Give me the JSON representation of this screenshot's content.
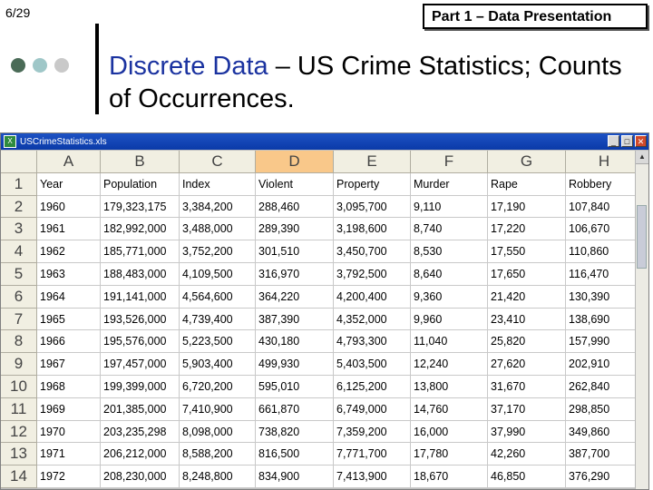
{
  "slide": {
    "number": "6/29",
    "section": "Part 1 – Data Presentation"
  },
  "title": {
    "highlight": "Discrete Data",
    "rest": " – US Crime Statistics; Counts of Occurrences."
  },
  "colors": {
    "dot1": "#4a6b57",
    "dot2": "#9fc7c8",
    "dot3": "#c9c9c9",
    "title_accent": "#1b33a0",
    "selected_header": "#f9c88a"
  },
  "window": {
    "title": "USCrimeStatistics.xls"
  },
  "sheet": {
    "columns": [
      "A",
      "B",
      "C",
      "D",
      "E",
      "F",
      "G",
      "H"
    ],
    "selected_column": "D",
    "rows": [
      {
        "n": "1",
        "cells": [
          "Year",
          "Population",
          "Index",
          "Violent",
          "Property",
          "Murder",
          "Rape",
          "Robbery"
        ]
      },
      {
        "n": "2",
        "cells": [
          "1960",
          "179,323,175",
          "3,384,200",
          "288,460",
          "3,095,700",
          "9,110",
          "17,190",
          "107,840"
        ]
      },
      {
        "n": "3",
        "cells": [
          "1961",
          "182,992,000",
          "3,488,000",
          "289,390",
          "3,198,600",
          "8,740",
          "17,220",
          "106,670"
        ]
      },
      {
        "n": "4",
        "cells": [
          "1962",
          "185,771,000",
          "3,752,200",
          "301,510",
          "3,450,700",
          "8,530",
          "17,550",
          "110,860"
        ]
      },
      {
        "n": "5",
        "cells": [
          "1963",
          "188,483,000",
          "4,109,500",
          "316,970",
          "3,792,500",
          "8,640",
          "17,650",
          "116,470"
        ]
      },
      {
        "n": "6",
        "cells": [
          "1964",
          "191,141,000",
          "4,564,600",
          "364,220",
          "4,200,400",
          "9,360",
          "21,420",
          "130,390"
        ]
      },
      {
        "n": "7",
        "cells": [
          "1965",
          "193,526,000",
          "4,739,400",
          "387,390",
          "4,352,000",
          "9,960",
          "23,410",
          "138,690"
        ]
      },
      {
        "n": "8",
        "cells": [
          "1966",
          "195,576,000",
          "5,223,500",
          "430,180",
          "4,793,300",
          "11,040",
          "25,820",
          "157,990"
        ]
      },
      {
        "n": "9",
        "cells": [
          "1967",
          "197,457,000",
          "5,903,400",
          "499,930",
          "5,403,500",
          "12,240",
          "27,620",
          "202,910"
        ]
      },
      {
        "n": "10",
        "cells": [
          "1968",
          "199,399,000",
          "6,720,200",
          "595,010",
          "6,125,200",
          "13,800",
          "31,670",
          "262,840"
        ]
      },
      {
        "n": "11",
        "cells": [
          "1969",
          "201,385,000",
          "7,410,900",
          "661,870",
          "6,749,000",
          "14,760",
          "37,170",
          "298,850"
        ]
      },
      {
        "n": "12",
        "cells": [
          "1970",
          "203,235,298",
          "8,098,000",
          "738,820",
          "7,359,200",
          "16,000",
          "37,990",
          "349,860"
        ]
      },
      {
        "n": "13",
        "cells": [
          "1971",
          "206,212,000",
          "8,588,200",
          "816,500",
          "7,771,700",
          "17,780",
          "42,260",
          "387,700"
        ]
      },
      {
        "n": "14",
        "cells": [
          "1972",
          "208,230,000",
          "8,248,800",
          "834,900",
          "7,413,900",
          "18,670",
          "46,850",
          "376,290"
        ]
      }
    ]
  }
}
